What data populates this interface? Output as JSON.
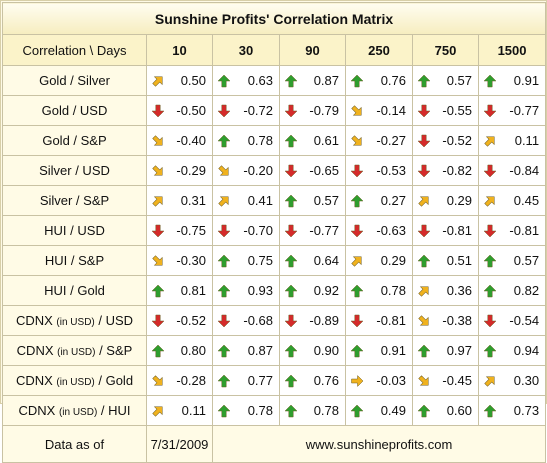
{
  "title": "Sunshine Profits' Correlation Matrix",
  "header": {
    "label": "Correlation \\ Days",
    "cols": [
      "10",
      "30",
      "90",
      "250",
      "750",
      "1500"
    ]
  },
  "rows": [
    {
      "a": "Gold / Silver",
      "cells": [
        {
          "v": "0.50",
          "i": "ne"
        },
        {
          "v": "0.63",
          "i": "up"
        },
        {
          "v": "0.87",
          "i": "up"
        },
        {
          "v": "0.76",
          "i": "up"
        },
        {
          "v": "0.57",
          "i": "up"
        },
        {
          "v": "0.91",
          "i": "up"
        }
      ]
    },
    {
      "a": "Gold / USD",
      "cells": [
        {
          "v": "-0.50",
          "i": "down"
        },
        {
          "v": "-0.72",
          "i": "down"
        },
        {
          "v": "-0.79",
          "i": "down"
        },
        {
          "v": "-0.14",
          "i": "se"
        },
        {
          "v": "-0.55",
          "i": "down"
        },
        {
          "v": "-0.77",
          "i": "down"
        }
      ]
    },
    {
      "a": "Gold / S&P",
      "cells": [
        {
          "v": "-0.40",
          "i": "se"
        },
        {
          "v": "0.78",
          "i": "up"
        },
        {
          "v": "0.61",
          "i": "up"
        },
        {
          "v": "-0.27",
          "i": "se"
        },
        {
          "v": "-0.52",
          "i": "down"
        },
        {
          "v": "0.11",
          "i": "ne"
        }
      ]
    },
    {
      "a": "Silver / USD",
      "cells": [
        {
          "v": "-0.29",
          "i": "se"
        },
        {
          "v": "-0.20",
          "i": "se"
        },
        {
          "v": "-0.65",
          "i": "down"
        },
        {
          "v": "-0.53",
          "i": "down"
        },
        {
          "v": "-0.82",
          "i": "down"
        },
        {
          "v": "-0.84",
          "i": "down"
        }
      ]
    },
    {
      "a": "Silver / S&P",
      "cells": [
        {
          "v": "0.31",
          "i": "ne"
        },
        {
          "v": "0.41",
          "i": "ne"
        },
        {
          "v": "0.57",
          "i": "up"
        },
        {
          "v": "0.27",
          "i": "up"
        },
        {
          "v": "0.29",
          "i": "ne"
        },
        {
          "v": "0.45",
          "i": "ne"
        }
      ]
    },
    {
      "a": "HUI / USD",
      "cells": [
        {
          "v": "-0.75",
          "i": "down"
        },
        {
          "v": "-0.70",
          "i": "down"
        },
        {
          "v": "-0.77",
          "i": "down"
        },
        {
          "v": "-0.63",
          "i": "down"
        },
        {
          "v": "-0.81",
          "i": "down"
        },
        {
          "v": "-0.81",
          "i": "down"
        }
      ]
    },
    {
      "a": "HUI / S&P",
      "cells": [
        {
          "v": "-0.30",
          "i": "se"
        },
        {
          "v": "0.75",
          "i": "up"
        },
        {
          "v": "0.64",
          "i": "up"
        },
        {
          "v": "0.29",
          "i": "ne"
        },
        {
          "v": "0.51",
          "i": "up"
        },
        {
          "v": "0.57",
          "i": "up"
        }
      ]
    },
    {
      "a": "HUI / Gold",
      "cells": [
        {
          "v": "0.81",
          "i": "up"
        },
        {
          "v": "0.93",
          "i": "up"
        },
        {
          "v": "0.92",
          "i": "up"
        },
        {
          "v": "0.78",
          "i": "up"
        },
        {
          "v": "0.36",
          "i": "ne"
        },
        {
          "v": "0.82",
          "i": "up"
        }
      ]
    },
    {
      "a": "CDNX ",
      "b": "(in USD)",
      "c": " / USD",
      "cells": [
        {
          "v": "-0.52",
          "i": "down"
        },
        {
          "v": "-0.68",
          "i": "down"
        },
        {
          "v": "-0.89",
          "i": "down"
        },
        {
          "v": "-0.81",
          "i": "down"
        },
        {
          "v": "-0.38",
          "i": "se"
        },
        {
          "v": "-0.54",
          "i": "down"
        }
      ]
    },
    {
      "a": "CDNX ",
      "b": "(in USD)",
      "c": " / S&P",
      "cells": [
        {
          "v": "0.80",
          "i": "up"
        },
        {
          "v": "0.87",
          "i": "up"
        },
        {
          "v": "0.90",
          "i": "up"
        },
        {
          "v": "0.91",
          "i": "up"
        },
        {
          "v": "0.97",
          "i": "up"
        },
        {
          "v": "0.94",
          "i": "up"
        }
      ]
    },
    {
      "a": "CDNX ",
      "b": "(in USD)",
      "c": " / Gold",
      "cells": [
        {
          "v": "-0.28",
          "i": "se"
        },
        {
          "v": "0.77",
          "i": "up"
        },
        {
          "v": "0.76",
          "i": "up"
        },
        {
          "v": "-0.03",
          "i": "right"
        },
        {
          "v": "-0.45",
          "i": "se"
        },
        {
          "v": "0.30",
          "i": "ne"
        }
      ]
    },
    {
      "a": "CDNX ",
      "b": "(in USD)",
      "c": " / HUI",
      "cells": [
        {
          "v": "0.11",
          "i": "ne"
        },
        {
          "v": "0.78",
          "i": "up"
        },
        {
          "v": "0.78",
          "i": "up"
        },
        {
          "v": "0.49",
          "i": "up"
        },
        {
          "v": "0.60",
          "i": "up"
        },
        {
          "v": "0.73",
          "i": "up"
        }
      ]
    }
  ],
  "footer": {
    "label": "Data as of",
    "date": "7/31/2009",
    "site": "www.sunshineprofits.com"
  },
  "icon_colors": {
    "up": "#2e9e2e",
    "down": "#d42a2a",
    "diag": "#f0b21e"
  }
}
